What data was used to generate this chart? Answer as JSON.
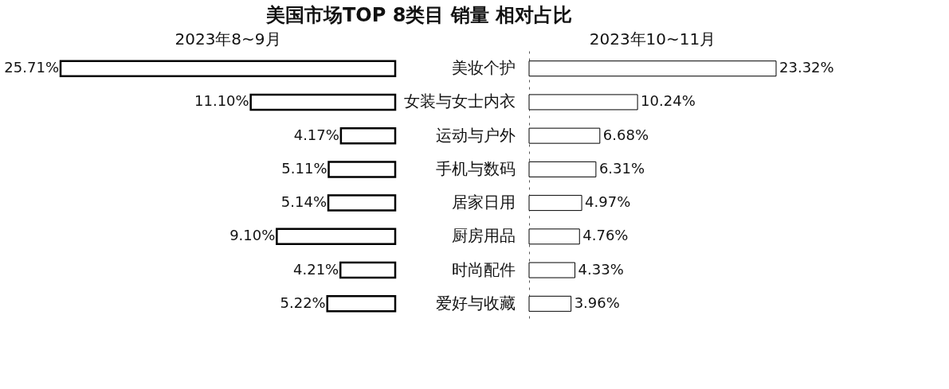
{
  "chart_data": [
    {
      "type": "bar",
      "orientation": "horizontal",
      "title": "美国市场TOP 8类目 销量 相对占比",
      "subtitle": "2023年8~9月",
      "categories": [
        null,
        null,
        null,
        null,
        null,
        null,
        null,
        null
      ],
      "series": [
        {
          "color": "#ffffff",
          "values": [
            25.71,
            11.1,
            4.17,
            5.11,
            5.14,
            9.1,
            4.21,
            5.22
          ],
          "value_labels": [
            "25.71%",
            "11.10%",
            "4.17%",
            "5.11%",
            "5.14%",
            "9.10%",
            "4.21%",
            "5.22%"
          ]
        }
      ],
      "xlim": [
        25.71,
        0
      ],
      "tick_labels": false
    },
    {
      "type": "bar",
      "orientation": "horizontal",
      "title": "2023年10~11月",
      "categories": [
        "美妆个护",
        "女装与女士内衣",
        "运动与户外",
        "手机与数码",
        "居家日用",
        "厨房用品",
        "时尚配件",
        "爱好与收藏"
      ],
      "series": [
        {
          "color": "#ffffff",
          "values": [
            23.32,
            10.24,
            6.68,
            6.31,
            4.97,
            4.76,
            4.33,
            3.96
          ],
          "value_labels": [
            "23.32%",
            "10.24%",
            "6.68%",
            "6.31%",
            "4.97%",
            "4.76%",
            "4.33%",
            "3.96%"
          ]
        }
      ],
      "xlim": [
        0,
        23.32
      ],
      "tick_labels": "y"
    }
  ]
}
